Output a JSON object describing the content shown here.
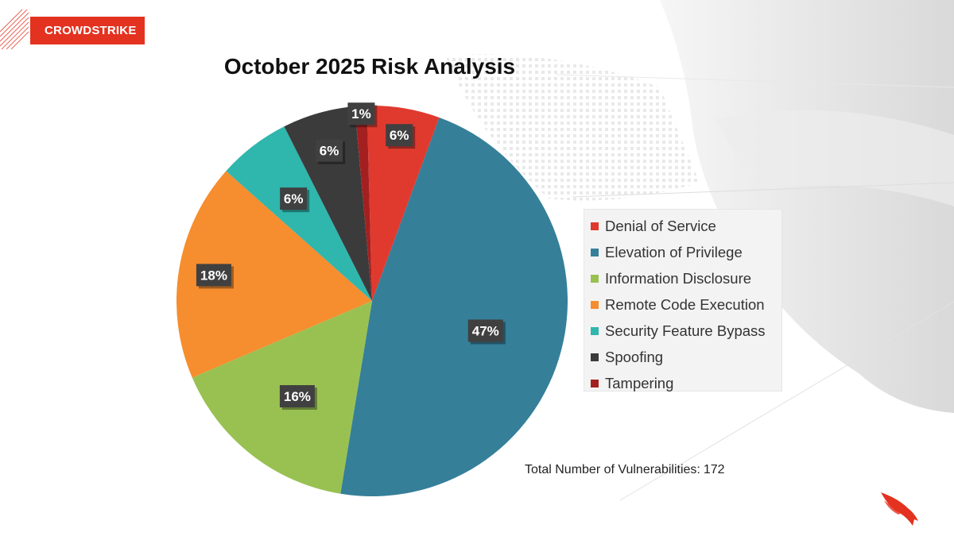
{
  "brand": {
    "name": "CROWDSTRIKE",
    "color": "#e3321f"
  },
  "chart_data": {
    "type": "pie",
    "title": "October 2025 Risk Analysis",
    "categories": [
      "Denial of Service",
      "Elevation of Privilege",
      "Information Disclosure",
      "Remote Code Execution",
      "Security Feature Bypass",
      "Spoofing",
      "Tampering"
    ],
    "values": [
      6,
      47,
      16,
      18,
      6,
      6,
      1
    ],
    "labels": [
      "6%",
      "47%",
      "16%",
      "18%",
      "6%",
      "6%",
      "1%"
    ],
    "colors": [
      "#e03a2f",
      "#357f99",
      "#99c152",
      "#f68d2e",
      "#2fb6ad",
      "#3b3b3b",
      "#a42020"
    ],
    "legend_position": "right"
  },
  "total": {
    "label": "Total Number of Vulnerabilities:",
    "value": "172"
  }
}
